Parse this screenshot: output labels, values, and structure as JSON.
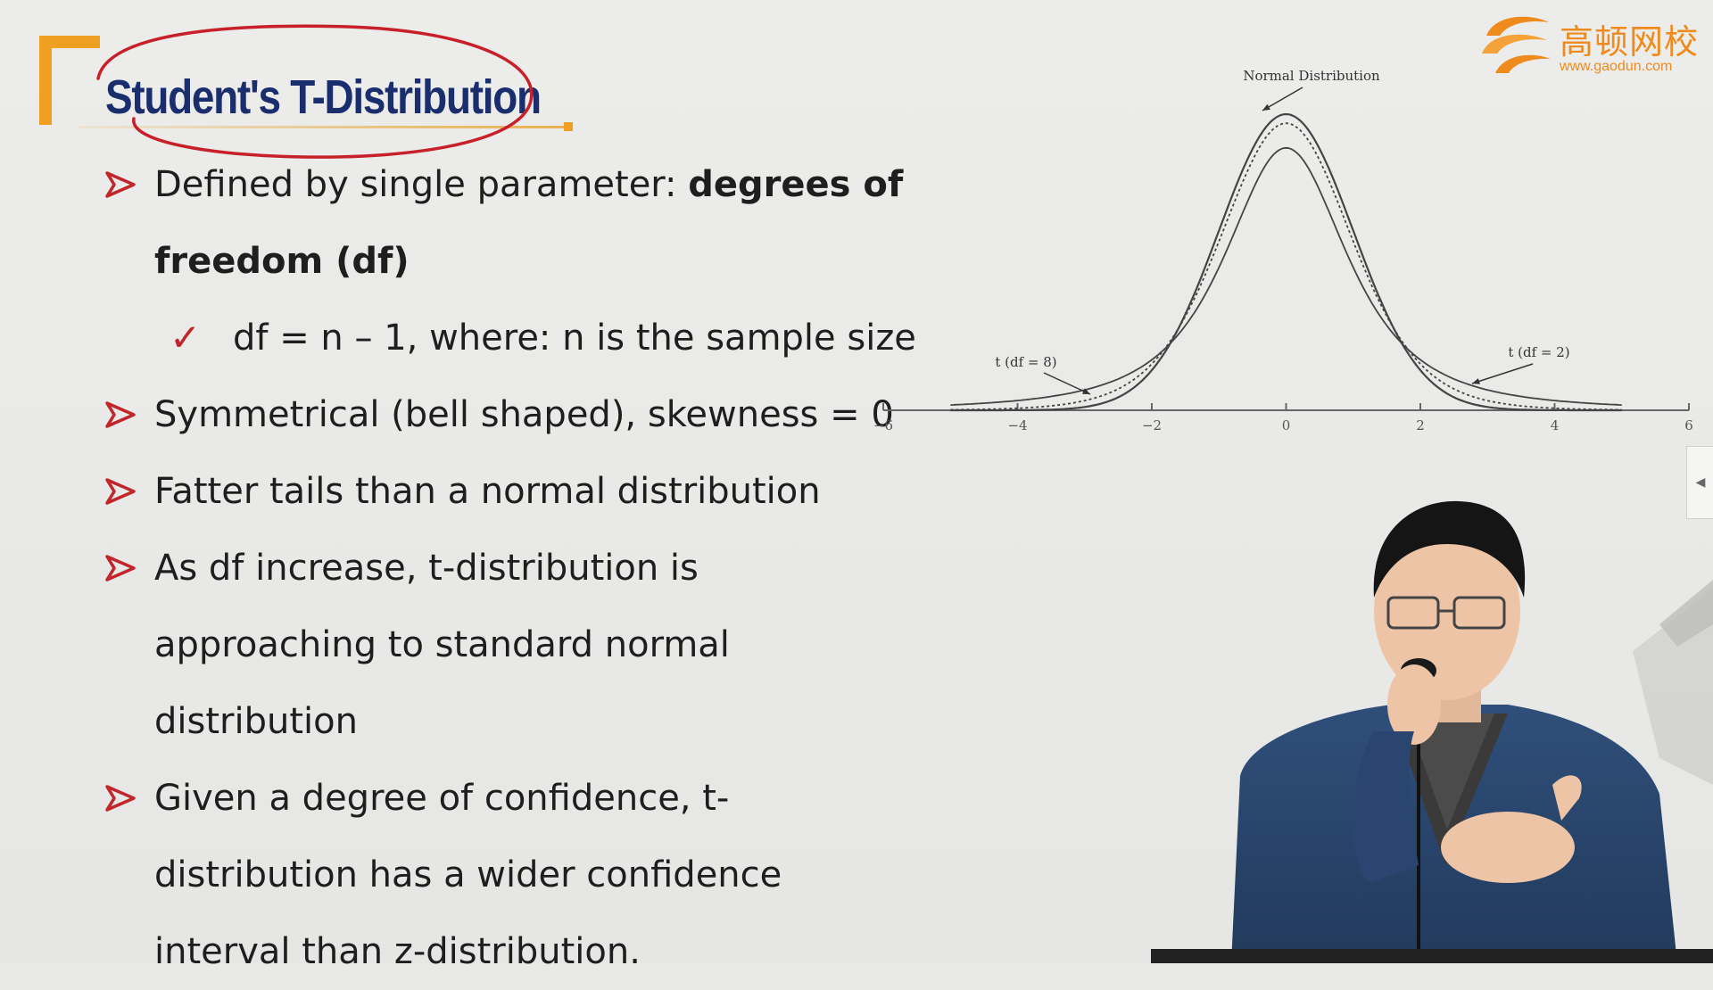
{
  "slide": {
    "title": "Student's T-Distribution",
    "bullets": [
      {
        "kind": "main",
        "text": "Defined by single parameter: ",
        "bold": "degrees of freedom (df)"
      },
      {
        "kind": "sub",
        "text": "df = n – 1, where: n is the sample size"
      },
      {
        "kind": "main",
        "text": "Symmetrical (bell shaped), skewness = 0"
      },
      {
        "kind": "main",
        "text": "Fatter tails than a normal distribution"
      },
      {
        "kind": "main",
        "text": "As df increase, t-distribution is approaching to standard normal distribution"
      },
      {
        "kind": "main",
        "text": "Given a degree of confidence, t-distribution has a wider confidence interval than z-distribution."
      }
    ]
  },
  "logo": {
    "name": "高顿网校",
    "url": "www.gaodun.com",
    "color": "#ef8a1c"
  },
  "colors": {
    "title": "#1a2e6e",
    "accent_orange": "#f0a020",
    "bullet_red": "#c0262c",
    "annotation_red": "#c8202a"
  },
  "chart_data": {
    "type": "line",
    "x_ticks": [
      "−6",
      "−4",
      "−2",
      "0",
      "2",
      "4",
      "6"
    ],
    "xlim": [
      -6,
      6
    ],
    "annotations": [
      "Normal Distribution",
      "t (df = 8)",
      "t (df = 2)"
    ],
    "series": [
      {
        "name": "Normal Distribution",
        "df": null,
        "style": "solid"
      },
      {
        "name": "t (df = 8)",
        "df": 8,
        "style": "dotted"
      },
      {
        "name": "t (df = 2)",
        "df": 2,
        "style": "solid"
      }
    ]
  }
}
